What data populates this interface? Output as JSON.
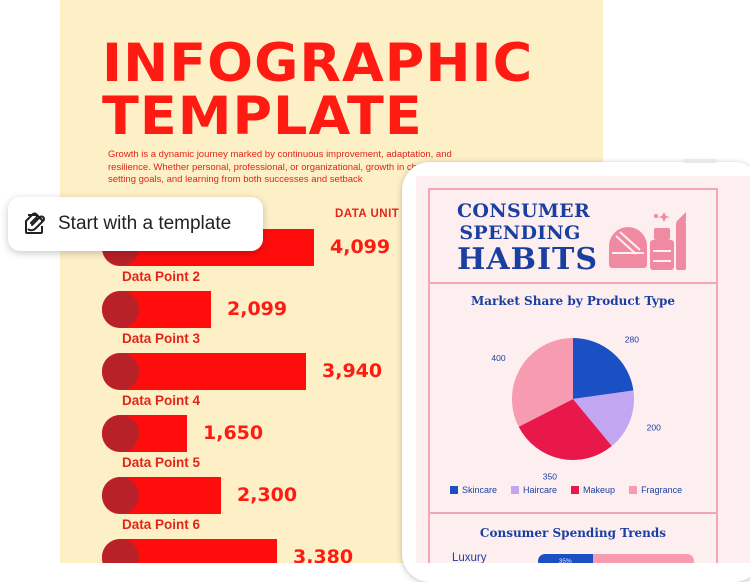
{
  "poster": {
    "title_line1": "INFOGRAPHIC",
    "title_line2": "TEMPLATE",
    "body": "Growth is a dynamic journey marked by continuous improvement, adaptation, and resilience. Whether personal, professional, or organizational, growth in change, setting goals, and learning from both successes and setback",
    "data_unit_label": "DATA UNIT",
    "bars": [
      {
        "label": "",
        "value": "4,099",
        "amount": 4099
      },
      {
        "label": "Data Point  2",
        "value": "2,099",
        "amount": 2099
      },
      {
        "label": "Data Point  3",
        "value": "3,940",
        "amount": 3940
      },
      {
        "label": "Data Point  4",
        "value": "1,650",
        "amount": 1650
      },
      {
        "label": "Data Point 5",
        "value": "2,300",
        "amount": 2300
      },
      {
        "label": "Data Point 6",
        "value": "3,380",
        "amount": 3380
      }
    ],
    "colors": {
      "background": "#fdefc6",
      "accent": "#ff1a12",
      "cap": "#b82127"
    }
  },
  "template_pill": {
    "label": "Start with a template",
    "icon": "template-icon"
  },
  "tablet": {
    "title_line1": "CONSUMER",
    "title_line2": "SPENDING",
    "title_line3": "HABITS",
    "illustration": "makeup-illustration",
    "pie_heading": "Market Share by Product Type",
    "trends_heading": "Consumer Spending Trends",
    "trend_row": {
      "label": "Luxury",
      "percent_text": "35%",
      "percent": 35
    },
    "colors": {
      "background": "#fdeef0",
      "border": "#f4a6b6",
      "heading": "#1b3fa0"
    }
  },
  "chart_data": {
    "type": "pie",
    "title": "Market Share by Product Type",
    "categories": [
      "Skincare",
      "Haircare",
      "Makeup",
      "Fragrance"
    ],
    "values": [
      280,
      200,
      350,
      400
    ],
    "colors": [
      "#1b4fc4",
      "#c2a6f2",
      "#e8194a",
      "#f79bb1"
    ],
    "legend": "bottom"
  }
}
